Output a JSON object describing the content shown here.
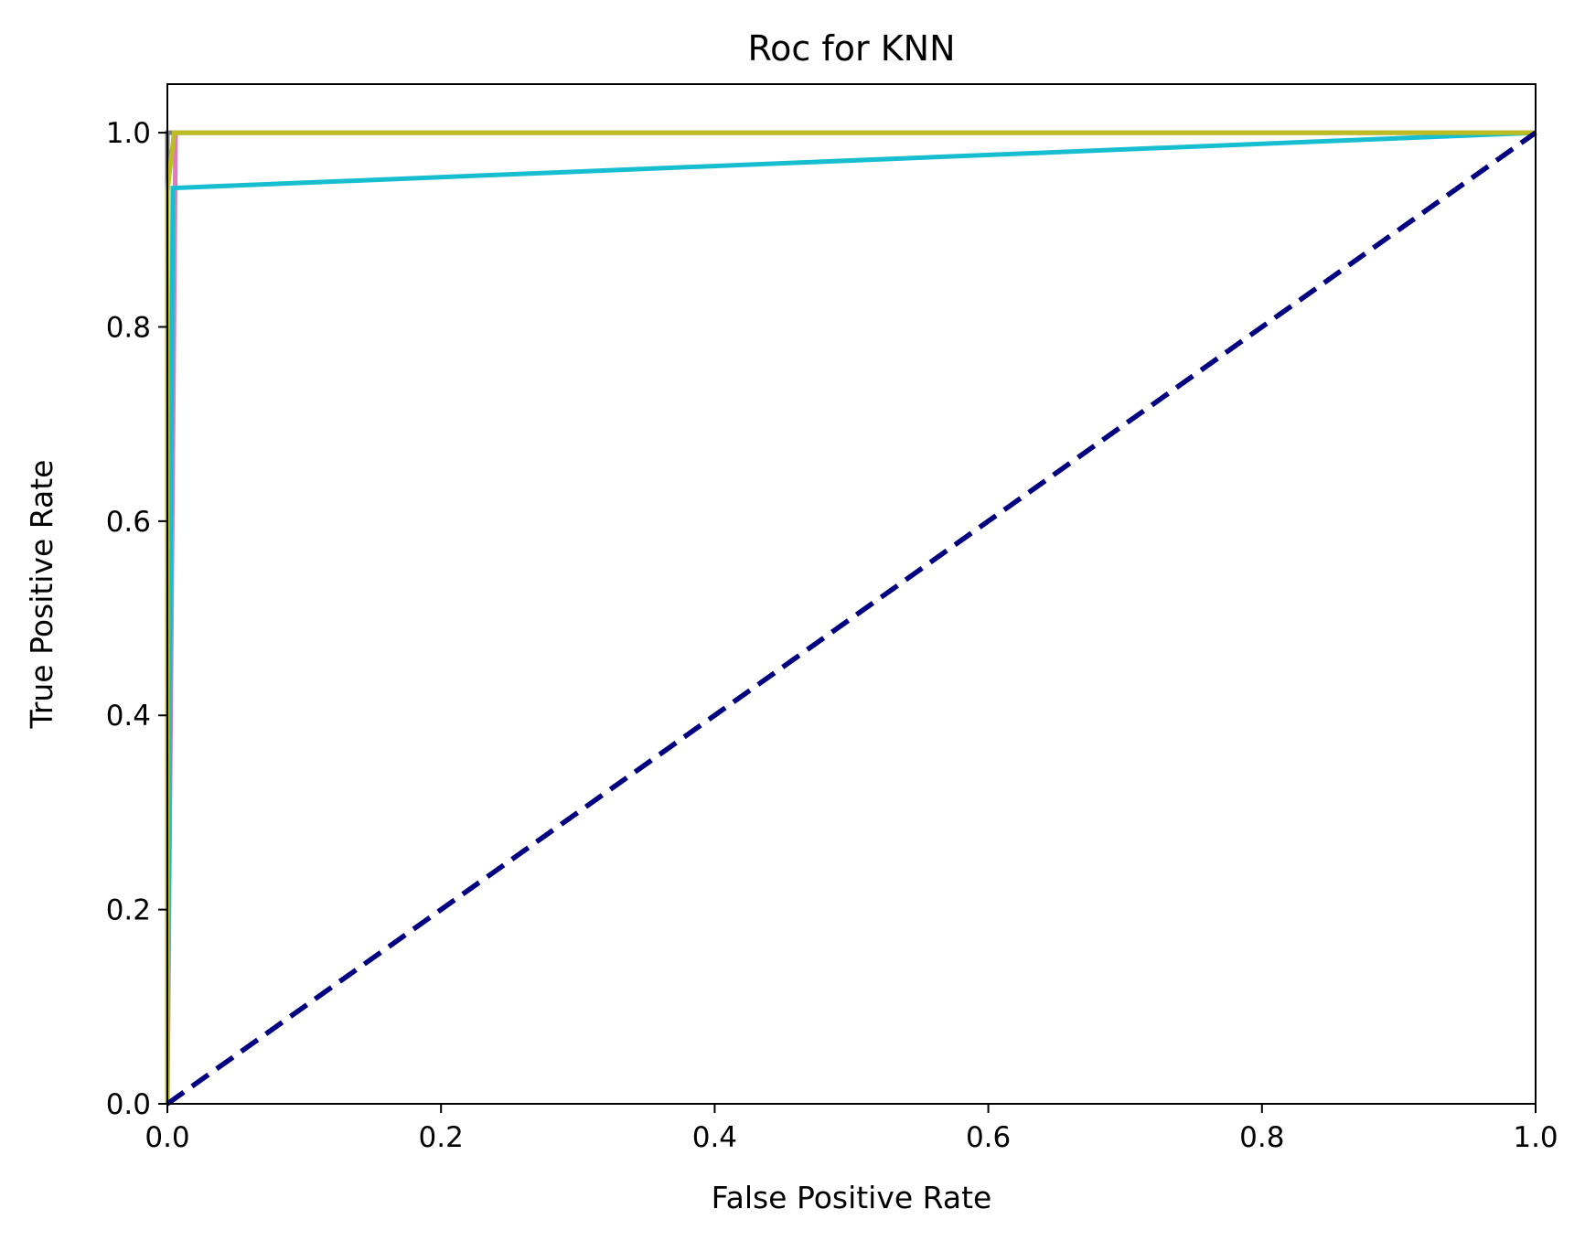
{
  "chart_data": {
    "type": "line",
    "title": "Roc for KNN",
    "xlabel": "False Positive Rate",
    "ylabel": "True Positive Rate",
    "xlim": [
      0.0,
      1.0
    ],
    "ylim": [
      0.0,
      1.05
    ],
    "xticks": [
      "0.0",
      "0.2",
      "0.4",
      "0.6",
      "0.8",
      "1.0"
    ],
    "yticks": [
      "0.0",
      "0.2",
      "0.4",
      "0.6",
      "0.8",
      "1.0"
    ],
    "grid": false,
    "legend": "none",
    "series": [
      {
        "color": "#7f7f7f",
        "x": [
          0.0,
          0.0,
          1.0
        ],
        "y": [
          0.0,
          1.0,
          1.0
        ]
      },
      {
        "color": "#e377c2",
        "x": [
          0.0,
          0.006,
          1.0
        ],
        "y": [
          0.0,
          1.0,
          1.0
        ]
      },
      {
        "color": "#17becf",
        "x": [
          0.0,
          0.004,
          1.0
        ],
        "y": [
          0.0,
          0.943,
          1.0
        ]
      },
      {
        "color": "#bcbd22",
        "x": [
          0.0,
          0.0,
          0.005,
          1.0
        ],
        "y": [
          0.0,
          0.94,
          1.0,
          1.0
        ]
      },
      {
        "color": "#000080",
        "dashed": true,
        "x": [
          0.0,
          1.0
        ],
        "y": [
          0.0,
          1.0
        ]
      }
    ]
  }
}
